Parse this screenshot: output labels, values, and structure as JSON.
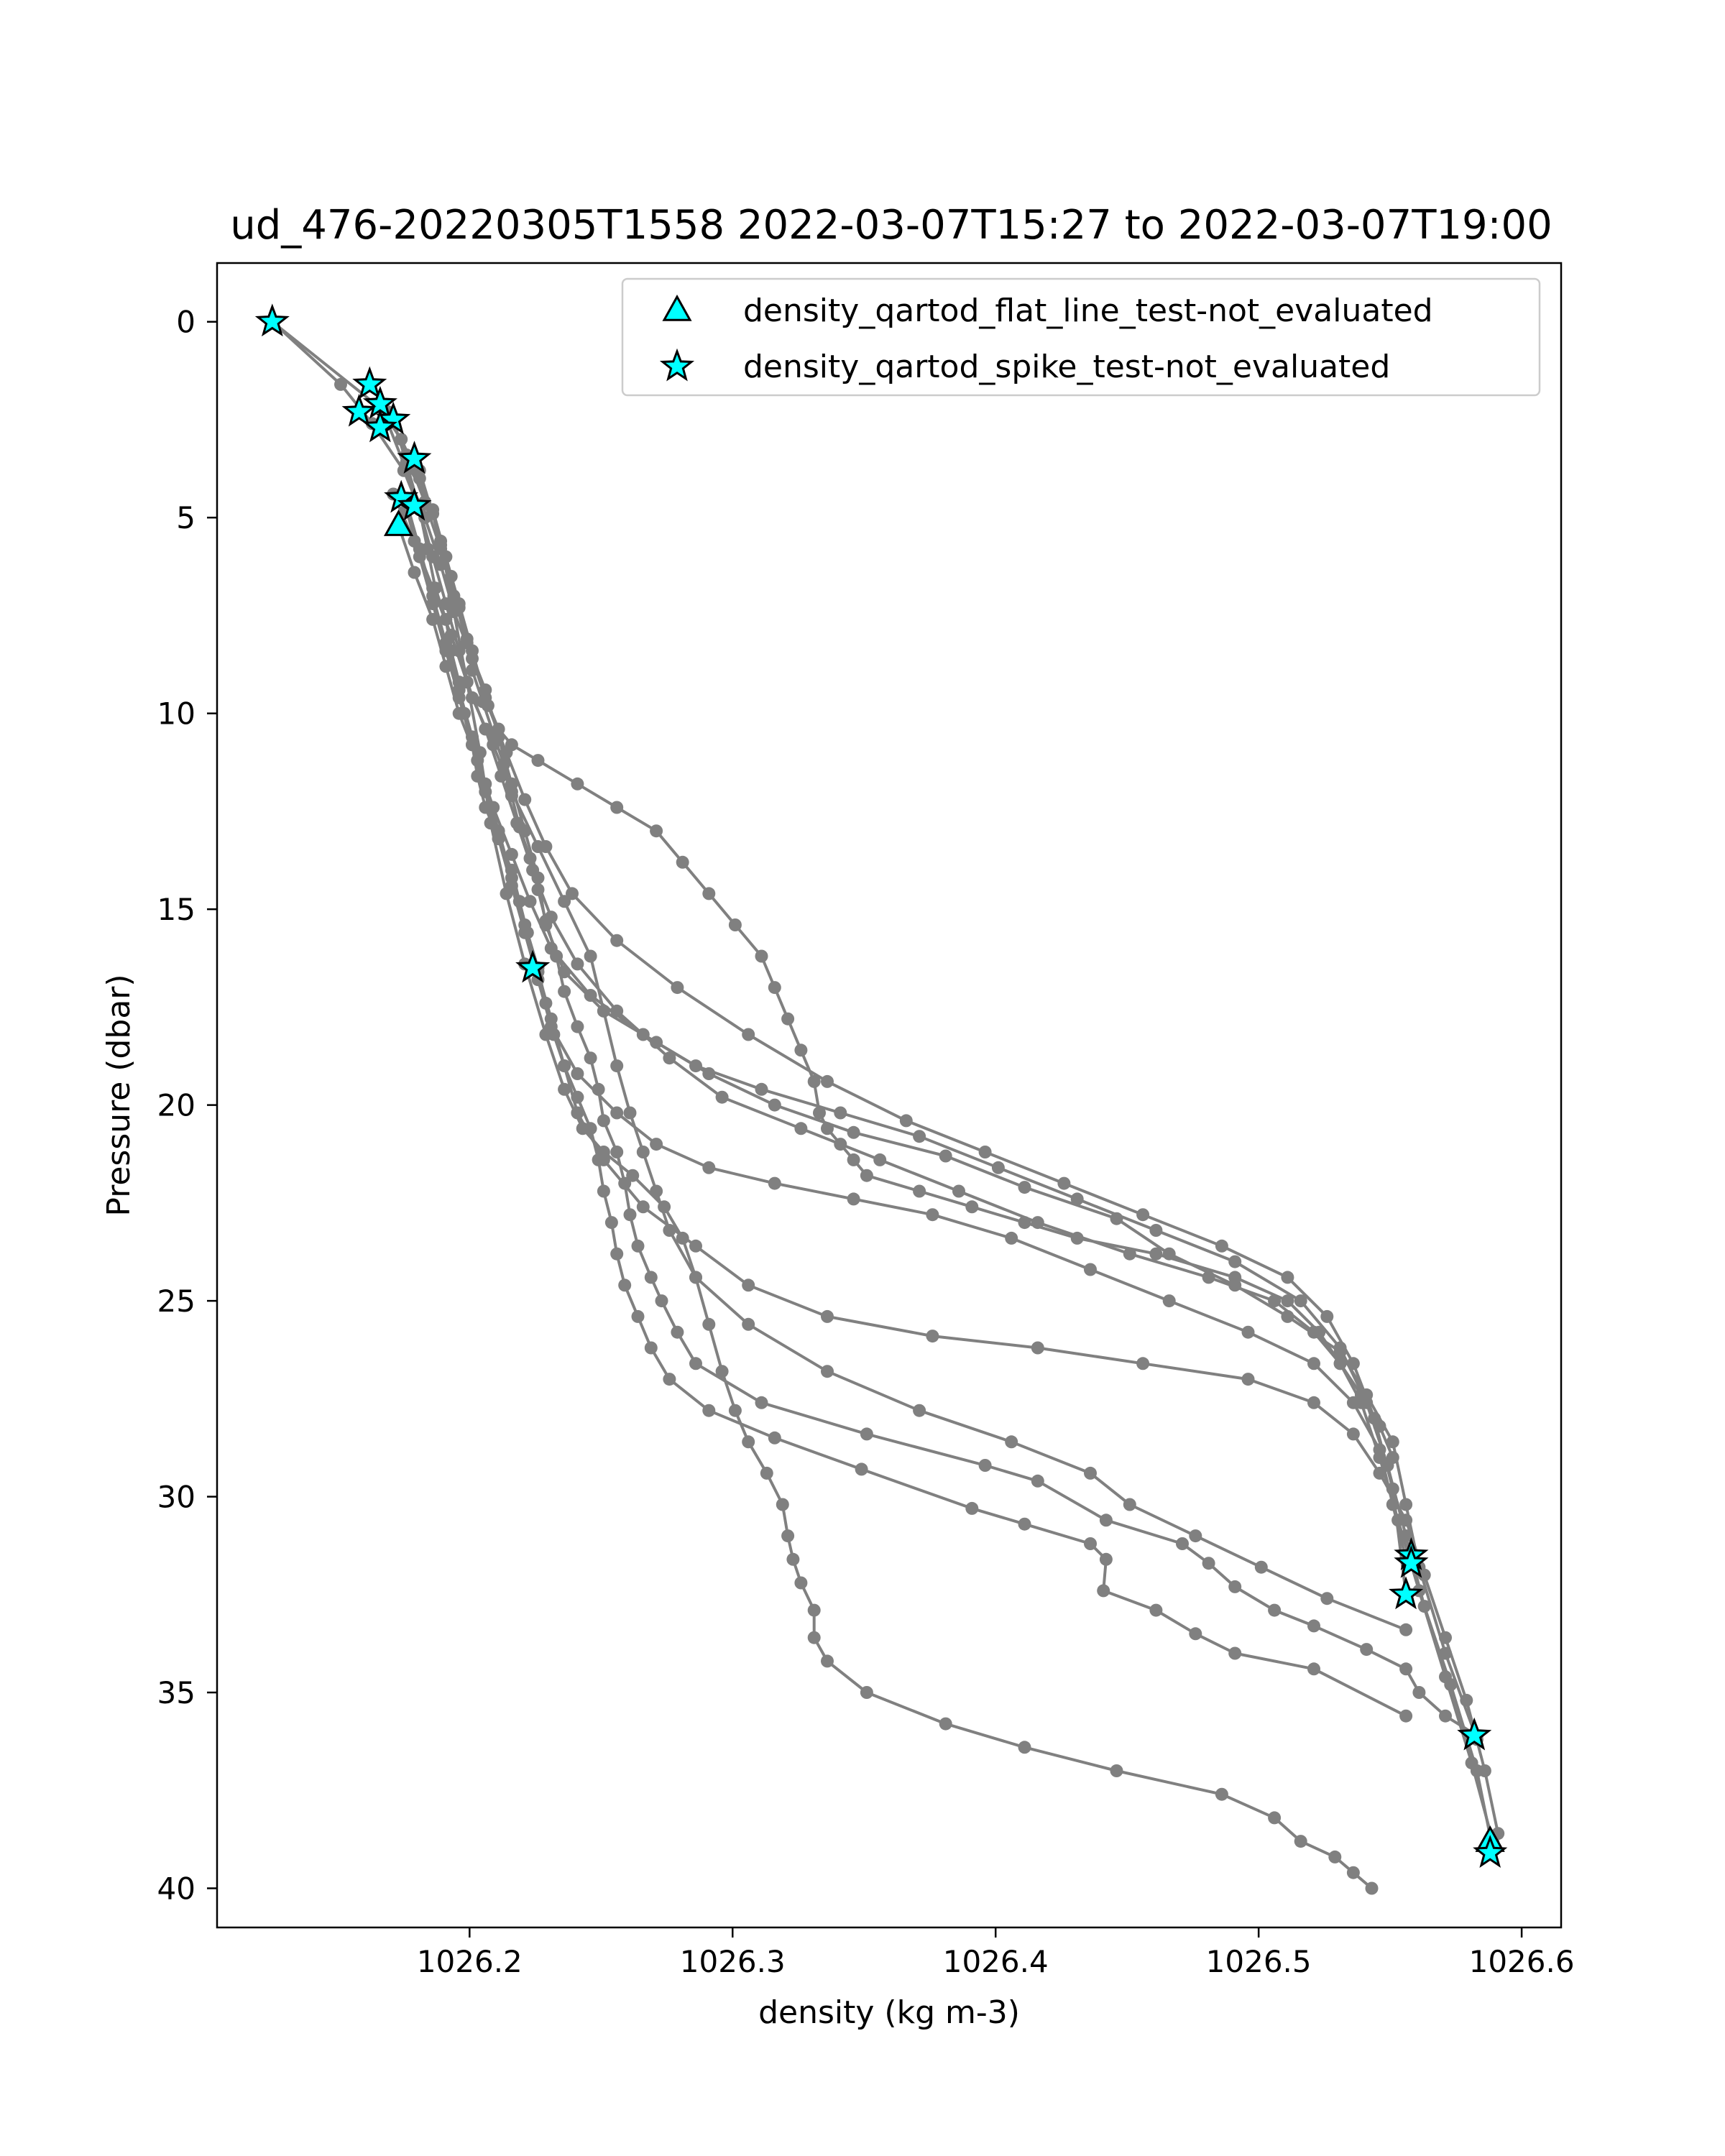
{
  "chart_data": {
    "type": "scatter",
    "title": "ud_476-20220305T1558 2022-03-07T15:27 to 2022-03-07T19:00",
    "xlabel": "density (kg m-3)",
    "ylabel": "Pressure (dbar)",
    "xlim": [
      1026.104,
      1026.615
    ],
    "ylim": [
      41.0,
      -1.5
    ],
    "y_inverted": true,
    "grid": false,
    "legend_position": "top-right",
    "x_ticks": [
      1026.2,
      1026.3,
      1026.4,
      1026.5,
      1026.6
    ],
    "x_tick_labels": [
      "1026.2",
      "1026.3",
      "1026.4",
      "1026.5",
      "1026.6"
    ],
    "y_ticks": [
      0,
      5,
      10,
      15,
      20,
      25,
      30,
      35,
      40
    ],
    "y_tick_labels": [
      "0",
      "5",
      "10",
      "15",
      "20",
      "25",
      "30",
      "35",
      "40"
    ],
    "colors": {
      "profile": "#808080",
      "marker_fill": "#00ffff",
      "marker_edge": "#000000"
    },
    "profiles": [
      {
        "x": [
          1026.125,
          1026.151,
          1026.163,
          1026.175,
          1026.181,
          1026.184,
          1026.187,
          1026.191,
          1026.193,
          1026.196,
          1026.198,
          1026.201,
          1026.203,
          1026.206,
          1026.211,
          1026.216,
          1026.219,
          1026.222,
          1026.226,
          1026.229,
          1026.232,
          1026.236,
          1026.241,
          1026.246,
          1026.249,
          1026.251,
          1026.254,
          1026.256,
          1026.259,
          1026.264,
          1026.269,
          1026.276,
          1026.291,
          1026.316,
          1026.349,
          1026.391,
          1026.411,
          1026.436,
          1026.442,
          1026.441,
          1026.461,
          1026.476,
          1026.491,
          1026.521,
          1026.556
        ],
        "y": [
          0.0,
          1.6,
          2.6,
          3.8,
          4.8,
          5.8,
          6.8,
          7.6,
          8.4,
          9.2,
          10.0,
          10.8,
          11.6,
          12.4,
          13.2,
          14.0,
          14.8,
          15.6,
          16.5,
          17.4,
          18.2,
          19.0,
          19.8,
          20.6,
          21.4,
          22.2,
          23.0,
          23.8,
          24.6,
          25.4,
          26.2,
          27.0,
          27.8,
          28.5,
          29.3,
          30.3,
          30.7,
          31.2,
          31.6,
          32.4,
          32.9,
          33.5,
          34.0,
          34.4,
          35.6
        ]
      },
      {
        "x": [
          1026.125,
          1026.166,
          1026.174,
          1026.181,
          1026.186,
          1026.189,
          1026.193,
          1026.196,
          1026.199,
          1026.201,
          1026.205,
          1026.209,
          1026.213,
          1026.216,
          1026.219,
          1026.223,
          1026.226,
          1026.229,
          1026.233,
          1026.236,
          1026.241,
          1026.246,
          1026.249,
          1026.251,
          1026.256,
          1026.259,
          1026.261,
          1026.264,
          1026.269,
          1026.273,
          1026.279,
          1026.286,
          1026.311,
          1026.351,
          1026.396,
          1026.416,
          1026.442,
          1026.471,
          1026.481,
          1026.491,
          1026.506,
          1026.521,
          1026.541,
          1026.556,
          1026.561,
          1026.571,
          1026.583
        ],
        "y": [
          0.0,
          2.2,
          3.0,
          4.0,
          4.9,
          5.7,
          6.5,
          7.3,
          8.1,
          8.9,
          9.7,
          10.5,
          11.3,
          12.1,
          12.9,
          13.7,
          14.5,
          15.3,
          16.2,
          17.1,
          18.0,
          18.8,
          19.6,
          20.4,
          21.2,
          22.0,
          22.8,
          23.6,
          24.4,
          25.0,
          25.8,
          26.6,
          27.6,
          28.4,
          29.2,
          29.6,
          30.6,
          31.2,
          31.7,
          32.3,
          32.9,
          33.3,
          33.9,
          34.4,
          35.0,
          35.6,
          36.1
        ]
      },
      {
        "x": [
          1026.169,
          1026.176,
          1026.183,
          1026.189,
          1026.194,
          1026.199,
          1026.206,
          1026.211,
          1026.216,
          1026.221,
          1026.226,
          1026.229,
          1026.236,
          1026.251,
          1026.271,
          1026.291,
          1026.316,
          1026.346,
          1026.381,
          1026.411,
          1026.446,
          1026.466,
          1026.491,
          1026.511,
          1026.531,
          1026.541,
          1026.551,
          1026.556,
          1026.561,
          1026.571,
          1026.583
        ],
        "y": [
          2.3,
          3.4,
          4.6,
          5.8,
          7.0,
          8.2,
          9.4,
          10.6,
          11.8,
          13.0,
          14.2,
          15.4,
          16.6,
          17.6,
          18.4,
          19.2,
          20.0,
          20.7,
          21.3,
          22.1,
          22.9,
          23.8,
          24.6,
          25.4,
          26.3,
          27.4,
          28.6,
          30.2,
          31.8,
          34.0,
          36.2
        ]
      },
      {
        "x": [
          1026.171,
          1026.179,
          1026.186,
          1026.193,
          1026.199,
          1026.206,
          1026.212,
          1026.218,
          1026.224,
          1026.231,
          1026.241,
          1026.256,
          1026.276,
          1026.296,
          1026.326,
          1026.356,
          1026.386,
          1026.416,
          1026.451,
          1026.481,
          1026.506,
          1026.521,
          1026.531,
          1026.539,
          1026.546,
          1026.553,
          1026.561,
          1026.571,
          1026.581,
          1026.589
        ],
        "y": [
          4.4,
          5.6,
          6.8,
          8.0,
          9.2,
          10.4,
          11.6,
          12.8,
          14.0,
          15.2,
          16.4,
          17.6,
          18.8,
          19.8,
          20.6,
          21.4,
          22.2,
          23.0,
          23.8,
          24.4,
          25.0,
          25.8,
          26.6,
          27.6,
          29.0,
          30.6,
          32.4,
          34.6,
          36.8,
          38.8
        ]
      },
      {
        "x": [
          1026.169,
          1026.176,
          1026.183,
          1026.189,
          1026.194,
          1026.201,
          1026.207,
          1026.214,
          1026.221,
          1026.229,
          1026.239,
          1026.256,
          1026.279,
          1026.306,
          1026.336,
          1026.366,
          1026.396,
          1026.426,
          1026.456,
          1026.486,
          1026.511,
          1026.526,
          1026.536,
          1026.544,
          1026.551,
          1026.556
        ],
        "y": [
          2.6,
          3.8,
          5.0,
          6.2,
          7.4,
          8.6,
          9.8,
          11.0,
          12.2,
          13.4,
          14.6,
          15.8,
          17.0,
          18.2,
          19.4,
          20.4,
          21.2,
          22.0,
          22.8,
          23.6,
          24.4,
          25.4,
          26.6,
          28.0,
          29.8,
          32.5
        ]
      },
      {
        "x": [
          1026.173,
          1026.179,
          1026.186,
          1026.191,
          1026.196,
          1026.203,
          1026.209,
          1026.216,
          1026.223,
          1026.231,
          1026.246,
          1026.266,
          1026.286,
          1026.311,
          1026.341,
          1026.371,
          1026.401,
          1026.431,
          1026.461,
          1026.491,
          1026.516,
          1026.531,
          1026.541,
          1026.549,
          1026.556,
          1026.563,
          1026.573,
          1026.583,
          1026.589
        ],
        "y": [
          5.2,
          6.4,
          7.6,
          8.8,
          10.0,
          11.2,
          12.4,
          13.6,
          14.8,
          16.0,
          17.2,
          18.2,
          19.0,
          19.6,
          20.2,
          20.8,
          21.6,
          22.4,
          23.2,
          24.0,
          25.0,
          26.2,
          27.6,
          29.2,
          31.0,
          32.8,
          34.8,
          37.0,
          39.0
        ]
      },
      {
        "x": [
          1026.171,
          1026.176,
          1026.181,
          1026.186,
          1026.191,
          1026.196,
          1026.201,
          1026.209,
          1026.216,
          1026.226,
          1026.236,
          1026.246,
          1026.251,
          1026.256,
          1026.261,
          1026.266,
          1026.271,
          1026.276,
          1026.286,
          1026.306,
          1026.336,
          1026.371,
          1026.406,
          1026.436,
          1026.451,
          1026.476,
          1026.501,
          1026.526,
          1026.556
        ],
        "y": [
          2.5,
          3.6,
          4.8,
          6.0,
          7.2,
          8.4,
          9.6,
          10.8,
          12.0,
          13.4,
          14.8,
          16.2,
          17.6,
          19.0,
          20.2,
          21.2,
          22.2,
          23.2,
          24.4,
          25.6,
          26.8,
          27.8,
          28.6,
          29.4,
          30.2,
          31.0,
          31.8,
          32.6,
          33.4
        ]
      },
      {
        "x": [
          1026.176,
          1026.181,
          1026.186,
          1026.191,
          1026.196,
          1026.201,
          1026.206,
          1026.211,
          1026.216,
          1026.221,
          1026.226,
          1026.231,
          1026.236,
          1026.241,
          1026.251,
          1026.266,
          1026.286,
          1026.306,
          1026.336,
          1026.376,
          1026.416,
          1026.456,
          1026.496,
          1026.521,
          1026.536,
          1026.546,
          1026.556,
          1026.563,
          1026.571,
          1026.579,
          1026.586,
          1026.591
        ],
        "y": [
          4.6,
          5.8,
          7.0,
          8.2,
          9.4,
          10.6,
          11.8,
          13.0,
          14.2,
          15.4,
          16.6,
          17.8,
          19.0,
          20.2,
          21.4,
          22.6,
          23.6,
          24.6,
          25.4,
          25.9,
          26.2,
          26.6,
          27.0,
          27.6,
          28.4,
          29.4,
          30.6,
          32.0,
          33.6,
          35.2,
          37.0,
          38.6
        ]
      },
      {
        "x": [
          1026.176,
          1026.181,
          1026.186,
          1026.191,
          1026.196,
          1026.201,
          1026.206,
          1026.211,
          1026.216,
          1026.221,
          1026.226,
          1026.231,
          1026.241,
          1026.256,
          1026.271,
          1026.291,
          1026.316,
          1026.346,
          1026.376,
          1026.406,
          1026.436,
          1026.466,
          1026.496,
          1026.521,
          1026.536,
          1026.546,
          1026.551,
          1026.556
        ],
        "y": [
          4.8,
          6.0,
          7.2,
          8.4,
          9.6,
          10.8,
          12.0,
          13.2,
          14.4,
          15.6,
          16.8,
          18.0,
          19.2,
          20.2,
          21.0,
          21.6,
          22.0,
          22.4,
          22.8,
          23.4,
          24.2,
          25.0,
          25.8,
          26.6,
          27.6,
          28.8,
          30.2,
          31.6
        ]
      },
      {
        "x": [
          1026.181,
          1026.189,
          1026.194,
          1026.199,
          1026.204,
          1026.208,
          1026.214,
          1026.221,
          1026.229,
          1026.236,
          1026.243,
          1026.251,
          1026.262,
          1026.274,
          1026.281,
          1026.286,
          1026.291,
          1026.296,
          1026.301,
          1026.306,
          1026.313,
          1026.319,
          1026.321,
          1026.323,
          1026.326,
          1026.331,
          1026.331,
          1026.336,
          1026.351,
          1026.381,
          1026.411,
          1026.446,
          1026.486,
          1026.506,
          1026.516,
          1026.529,
          1026.536,
          1026.543
        ],
        "y": [
          3.8,
          5.6,
          7.4,
          9.2,
          11.0,
          12.8,
          14.6,
          16.4,
          18.2,
          19.6,
          20.6,
          21.2,
          21.8,
          22.6,
          23.4,
          24.4,
          25.6,
          26.8,
          27.8,
          28.6,
          29.4,
          30.2,
          31.0,
          31.6,
          32.2,
          32.9,
          33.6,
          34.2,
          35.0,
          35.8,
          36.4,
          37.0,
          37.6,
          38.2,
          38.8,
          39.2,
          39.6,
          40.0
        ]
      },
      {
        "x": [
          1026.176,
          1026.186,
          1026.191,
          1026.196,
          1026.201,
          1026.206,
          1026.211,
          1026.216,
          1026.226,
          1026.241,
          1026.256,
          1026.271,
          1026.281,
          1026.291,
          1026.301,
          1026.311,
          1026.316,
          1026.321,
          1026.326,
          1026.331,
          1026.333,
          1026.336,
          1026.341,
          1026.346,
          1026.351,
          1026.371,
          1026.391,
          1026.411,
          1026.431,
          1026.461,
          1026.491,
          1026.511,
          1026.523,
          1026.531,
          1026.539,
          1026.546,
          1026.551
        ],
        "y": [
          3.6,
          4.8,
          6.0,
          7.2,
          8.4,
          9.6,
          10.4,
          10.8,
          11.2,
          11.8,
          12.4,
          13.0,
          13.8,
          14.6,
          15.4,
          16.2,
          17.0,
          17.8,
          18.6,
          19.4,
          20.2,
          20.6,
          21.0,
          21.4,
          21.8,
          22.2,
          22.6,
          23.0,
          23.4,
          23.8,
          24.4,
          25.0,
          25.8,
          26.6,
          27.4,
          28.2,
          29.0
        ]
      }
    ],
    "series": [
      {
        "name": "density_qartod_flat_line_test-not_evaluated",
        "marker": "triangle",
        "x": [
          1026.173,
          1026.588
        ],
        "y": [
          5.2,
          38.8
        ]
      },
      {
        "name": "density_qartod_spike_test-not_evaluated",
        "marker": "star",
        "x": [
          1026.125,
          1026.162,
          1026.166,
          1026.158,
          1026.171,
          1026.166,
          1026.179,
          1026.174,
          1026.179,
          1026.224,
          1026.558,
          1026.558,
          1026.556,
          1026.582,
          1026.588
        ],
        "y": [
          0.0,
          1.6,
          2.1,
          2.3,
          2.5,
          2.7,
          3.5,
          4.5,
          4.7,
          16.5,
          31.5,
          31.7,
          32.5,
          36.1,
          39.1
        ]
      }
    ]
  }
}
